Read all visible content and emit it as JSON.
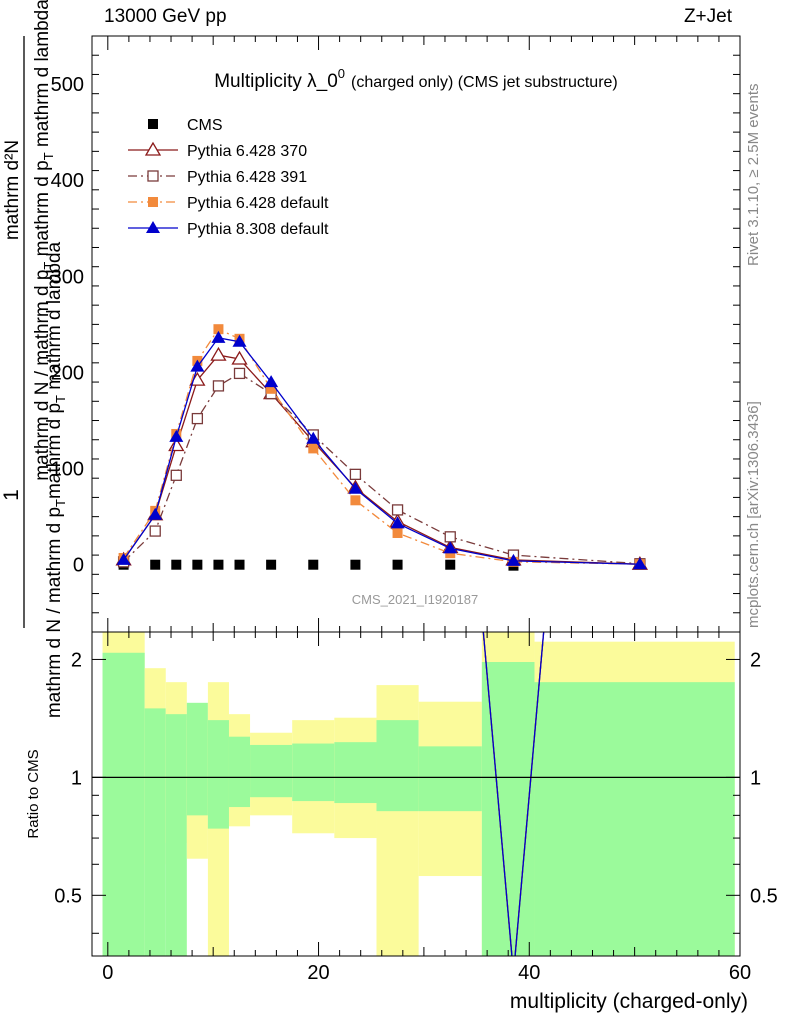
{
  "header": {
    "energy_label": "13000 GeV pp",
    "process_label": "Z+Jet"
  },
  "side": {
    "rivet": "Rivet 3.1.10, ≥ 2.5M events",
    "mcplots": "mcplots.cern.ch [arXiv:1306.3436]"
  },
  "analysis_id": "CMS_2021_I1920187",
  "main_ylabel": {
    "top": "mathrm d²N",
    "top_num": "1",
    "line1": "mathrm d N / mathrm d p",
    "sub1": "T",
    "line1b": " mathrm d p",
    "sub1b": "T",
    "line1c": " mathrm d lambda",
    "line2": "mathrm d N / mathrm d p",
    "sub2": "T",
    "line2b": "mathrm d p",
    "sub2b": "T",
    "line2c": " mathrm d lambda"
  },
  "chart_data": [
    {
      "type": "line",
      "title": "Multiplicity λ_0⁰ (charged only) (CMS jet substructure)",
      "title_main": "Multiplicity λ_0",
      "title_sup": "0",
      "title_small": "(charged only) (CMS jet substructure)",
      "xlim": [
        -1.5,
        60
      ],
      "ylim": [
        -70,
        550
      ],
      "y_ticks": [
        0,
        100,
        200,
        300,
        400,
        500
      ],
      "legend_position": "top-left",
      "series": [
        {
          "name": "CMS",
          "color": "#000000",
          "style": "none",
          "marker": "square-filled",
          "x": [
            1.5,
            4.5,
            6.5,
            8.5,
            10.5,
            12.5,
            15.5,
            19.5,
            23.5,
            27.5,
            32.5,
            38.5,
            50.5
          ],
          "y": [
            0,
            0,
            0,
            0,
            0,
            0,
            0,
            0,
            0,
            0,
            0,
            -1,
            0
          ]
        },
        {
          "name": "Pythia 6.428 370",
          "color": "#8b1a1a",
          "style": "solid",
          "marker": "triangle-open",
          "x": [
            1.5,
            4.5,
            6.5,
            8.5,
            10.5,
            12.5,
            15.5,
            19.5,
            23.5,
            27.5,
            32.5,
            38.5,
            50.5
          ],
          "y": [
            5,
            52,
            124,
            192,
            218,
            214,
            178,
            128,
            80,
            45,
            18,
            5,
            0.5
          ]
        },
        {
          "name": "Pythia 6.428 391",
          "color": "#7a3b3b",
          "style": "dashdot",
          "marker": "square-open",
          "x": [
            1.5,
            4.5,
            6.5,
            8.5,
            10.5,
            12.5,
            15.5,
            19.5,
            23.5,
            27.5,
            32.5,
            38.5,
            50.5
          ],
          "y": [
            3,
            35,
            93,
            152,
            186,
            199,
            178,
            135,
            94,
            57,
            29,
            10,
            1
          ]
        },
        {
          "name": "Pythia 6.428 default",
          "color": "#f28a3c",
          "style": "dashdot",
          "marker": "square-filled",
          "x": [
            1.5,
            4.5,
            6.5,
            8.5,
            10.5,
            12.5,
            15.5,
            19.5,
            23.5,
            27.5,
            32.5,
            38.5,
            50.5
          ],
          "y": [
            7,
            56,
            136,
            212,
            245,
            235,
            183,
            121,
            67,
            33,
            12,
            3,
            0.5
          ]
        },
        {
          "name": "Pythia 8.308 default",
          "color": "#0000cc",
          "style": "solid",
          "marker": "triangle-filled",
          "x": [
            1.5,
            4.5,
            6.5,
            8.5,
            10.5,
            12.5,
            15.5,
            19.5,
            23.5,
            27.5,
            32.5,
            38.5,
            50.5
          ],
          "y": [
            5,
            52,
            133,
            206,
            236,
            232,
            190,
            131,
            79,
            43,
            17,
            4,
            0.5
          ]
        }
      ]
    },
    {
      "type": "area",
      "ylabel": "Ratio to CMS",
      "xlabel": "multiplicity (charged-only)",
      "xlim": [
        -1.5,
        60
      ],
      "ylim": [
        0.35,
        2.35
      ],
      "x_ticks": [
        0,
        20,
        40,
        60
      ],
      "y_ticks": [
        0.5,
        1,
        2
      ],
      "bins": [
        {
          "x0": -0.5,
          "x1": 3.5,
          "green": [
            0.3,
            2.08
          ],
          "yellow": [
            0.3,
            3.0
          ]
        },
        {
          "x0": 3.5,
          "x1": 5.5,
          "green": [
            0.3,
            1.5
          ],
          "yellow": [
            0.6,
            1.9
          ]
        },
        {
          "x0": 5.5,
          "x1": 7.5,
          "green": [
            0.3,
            1.45
          ],
          "yellow": [
            0.68,
            1.75
          ]
        },
        {
          "x0": 7.5,
          "x1": 9.5,
          "green": [
            0.8,
            1.55
          ],
          "yellow": [
            0.62,
            1.4
          ]
        },
        {
          "x0": 9.5,
          "x1": 11.5,
          "green": [
            0.74,
            1.4
          ],
          "yellow": [
            0.3,
            1.75
          ]
        },
        {
          "x0": 11.5,
          "x1": 13.5,
          "green": [
            0.84,
            1.27
          ],
          "yellow": [
            0.75,
            1.45
          ]
        },
        {
          "x0": 13.5,
          "x1": 17.5,
          "green": [
            0.89,
            1.21
          ],
          "yellow": [
            0.8,
            1.3
          ]
        },
        {
          "x0": 17.5,
          "x1": 21.5,
          "green": [
            0.87,
            1.22
          ],
          "yellow": [
            0.72,
            1.4
          ]
        },
        {
          "x0": 21.5,
          "x1": 25.5,
          "green": [
            0.86,
            1.23
          ],
          "yellow": [
            0.7,
            1.42
          ]
        },
        {
          "x0": 25.5,
          "x1": 29.5,
          "green": [
            0.82,
            1.4
          ],
          "yellow": [
            0.3,
            1.72
          ]
        },
        {
          "x0": 29.5,
          "x1": 35.5,
          "green": [
            0.82,
            1.2
          ],
          "yellow": [
            0.56,
            1.56
          ]
        },
        {
          "x0": 35.5,
          "x1": 40.5,
          "green": [
            0.3,
            1.97
          ],
          "yellow": [
            0.3,
            3.0
          ]
        },
        {
          "x0": 40.5,
          "x1": 59.5,
          "green": [
            0.3,
            1.75
          ],
          "yellow": [
            0.3,
            2.22
          ]
        }
      ],
      "ratio_series": [
        {
          "name": "Pythia 6.428 370",
          "color": "#8b1a1a",
          "style": "solid",
          "x": [
            35.5,
            38.5,
            41.5
          ],
          "y": [
            3,
            0.3,
            3
          ]
        },
        {
          "name": "Pythia 6.428 391",
          "color": "#7a3b3b",
          "style": "dashdot",
          "x": [
            35.5,
            38.5,
            41.5
          ],
          "y": [
            3,
            0.3,
            3
          ]
        },
        {
          "name": "Pythia 6.428 default",
          "color": "#f28a3c",
          "style": "dashdot",
          "x": [
            35.5,
            38.5,
            41.5
          ],
          "y": [
            3,
            0.3,
            3
          ]
        },
        {
          "name": "Pythia 8.308 default",
          "color": "#0000cc",
          "style": "solid",
          "x": [
            35.5,
            38.5,
            41.5
          ],
          "y": [
            3,
            0.3,
            3
          ]
        }
      ],
      "colors": {
        "green": "#9bfa9b",
        "yellow": "#fbfb9b"
      }
    }
  ]
}
